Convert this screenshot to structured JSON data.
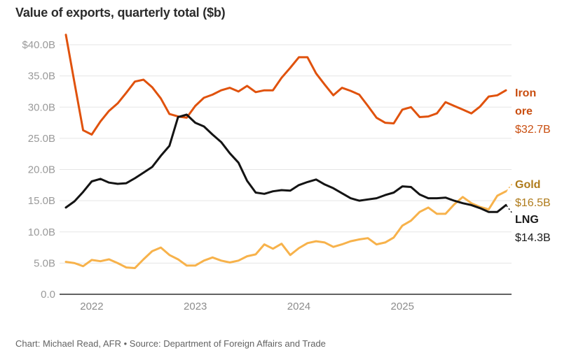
{
  "title": "Value of exports, quarterly total ($b)",
  "footer": "Chart: Michael Read, AFR • Source: Department of Foreign Affairs and Trade",
  "chart_data": {
    "type": "line",
    "title": "Value of exports, quarterly total ($b)",
    "grid": true,
    "ylim": [
      0,
      40
    ],
    "y_ticks": [
      {
        "label": "$40.0B",
        "value": 40
      },
      {
        "label": "35.0B",
        "value": 35
      },
      {
        "label": "30.0B",
        "value": 30
      },
      {
        "label": "25.0B",
        "value": 25
      },
      {
        "label": "20.0B",
        "value": 20
      },
      {
        "label": "15.0B",
        "value": 15
      },
      {
        "label": "10.0B",
        "value": 10
      },
      {
        "label": "5.0B",
        "value": 5
      },
      {
        "label": "0.0",
        "value": 0
      }
    ],
    "x_ticks": [
      {
        "label": "2022",
        "month_index": 3
      },
      {
        "label": "2023",
        "month_index": 15
      },
      {
        "label": "2024",
        "month_index": 27
      },
      {
        "label": "2025",
        "month_index": 39
      }
    ],
    "x_frequency": "monthly (rolling quarterly total)",
    "legend_position": "right-of-line-ends",
    "series": [
      {
        "id": "iron-ore",
        "name": "Iron ore",
        "end_value": "$32.7B",
        "color": "#e0520d",
        "label_color": "#c94e10",
        "connector": "none",
        "values": [
          41.6,
          33.9,
          26.3,
          25.6,
          27.7,
          29.4,
          30.6,
          32.3,
          34.1,
          34.4,
          33.2,
          31.4,
          28.9,
          28.5,
          28.3,
          30.2,
          31.5,
          32.0,
          32.7,
          33.1,
          32.5,
          33.4,
          32.4,
          32.7,
          32.7,
          34.7,
          36.3,
          38.0,
          38.0,
          35.4,
          33.6,
          31.9,
          33.1,
          32.6,
          32.0,
          30.2,
          28.3,
          27.5,
          27.4,
          29.6,
          30.0,
          28.4,
          28.5,
          29.0,
          30.8,
          30.2,
          29.6,
          29.0,
          30.1,
          31.7,
          31.9,
          32.7
        ]
      },
      {
        "id": "gold",
        "name": "Gold",
        "end_value": "$16.5B",
        "color": "#f7b24b",
        "label_color": "#af7b1b",
        "connector": "up",
        "values": [
          5.2,
          5.0,
          4.5,
          5.5,
          5.3,
          5.6,
          5.0,
          4.3,
          4.2,
          5.6,
          6.9,
          7.5,
          6.3,
          5.6,
          4.6,
          4.6,
          5.4,
          5.9,
          5.4,
          5.1,
          5.4,
          6.1,
          6.4,
          8.0,
          7.3,
          8.1,
          6.3,
          7.4,
          8.2,
          8.5,
          8.3,
          7.6,
          8.0,
          8.5,
          8.8,
          9.0,
          8.0,
          8.3,
          9.1,
          11.0,
          11.8,
          13.2,
          13.9,
          12.9,
          12.9,
          14.4,
          15.6,
          14.6,
          14.0,
          13.6,
          15.8,
          16.5
        ]
      },
      {
        "id": "lng",
        "name": "LNG",
        "end_value": "$14.3B",
        "color": "#141414",
        "label_color": "#1a1a1a",
        "connector": "down",
        "values": [
          13.9,
          14.9,
          16.4,
          18.1,
          18.5,
          17.9,
          17.7,
          17.8,
          18.6,
          19.5,
          20.4,
          22.2,
          23.8,
          28.4,
          28.8,
          27.5,
          26.9,
          25.6,
          24.4,
          22.6,
          21.1,
          18.2,
          16.3,
          16.1,
          16.5,
          16.7,
          16.6,
          17.5,
          18.0,
          18.4,
          17.6,
          17.0,
          16.2,
          15.4,
          15.0,
          15.2,
          15.4,
          15.9,
          16.3,
          17.3,
          17.2,
          16.0,
          15.4,
          15.4,
          15.5,
          15.0,
          14.6,
          14.3,
          13.8,
          13.2,
          13.2,
          14.3
        ]
      }
    ]
  }
}
